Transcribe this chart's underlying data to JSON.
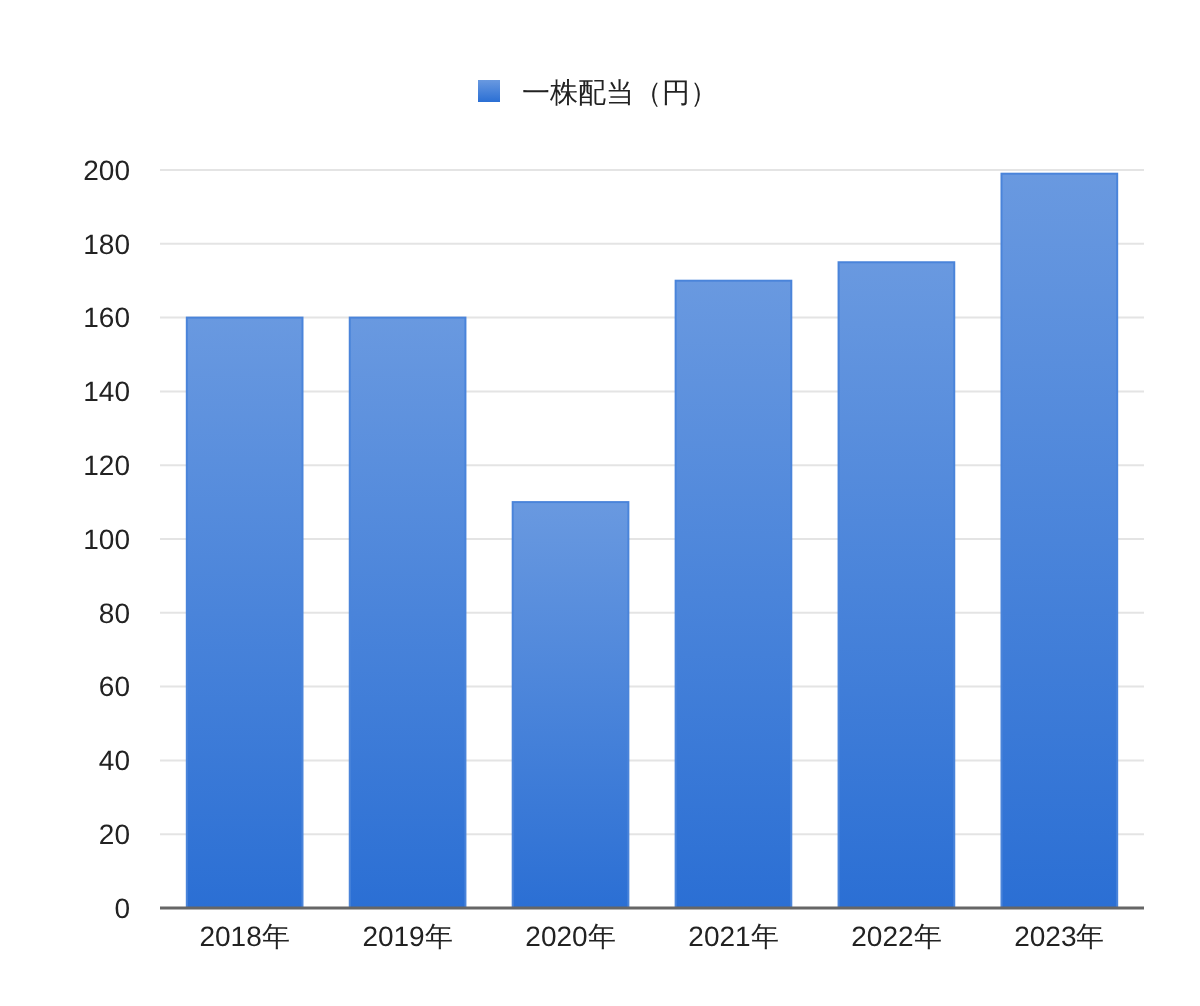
{
  "chart_data": {
    "type": "bar",
    "categories": [
      "2018年",
      "2019年",
      "2020年",
      "2021年",
      "2022年",
      "2023年"
    ],
    "series": [
      {
        "name": "一株配当（円）",
        "color": "#4a84da",
        "values": [
          160,
          160,
          110,
          170,
          175,
          199
        ]
      }
    ],
    "ylim": [
      0,
      200
    ],
    "yticks": [
      0,
      20,
      40,
      60,
      80,
      100,
      120,
      140,
      160,
      180,
      200
    ],
    "grid": "y",
    "legend": "top"
  }
}
